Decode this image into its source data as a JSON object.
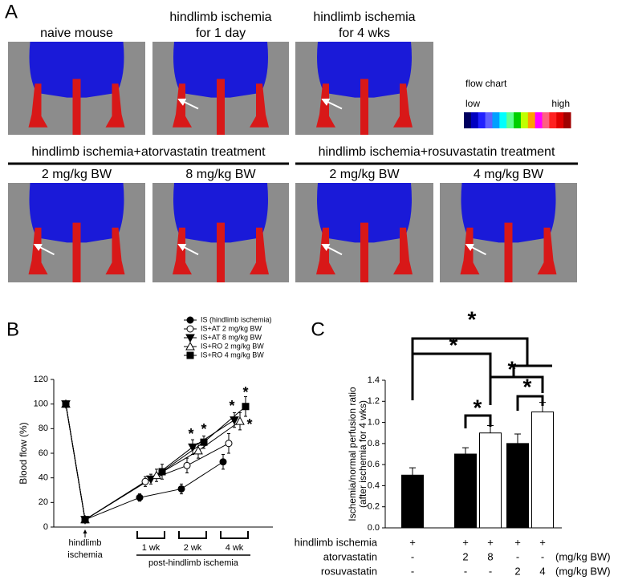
{
  "panel_a": {
    "label": "A",
    "images": [
      {
        "title": [
          "naive mouse"
        ]
      },
      {
        "title": [
          "hindlimb ischemia",
          "for 1 day"
        ]
      },
      {
        "title": [
          "hindlimb ischemia",
          "for 4 wks"
        ]
      }
    ],
    "legend": {
      "title": "flow chart",
      "low": "low",
      "high": "high"
    },
    "groups": [
      {
        "title": "hindlimb ischemia+atorvastatin treatment",
        "doses": [
          "2 mg/kg BW",
          "8 mg/kg BW"
        ]
      },
      {
        "title": "hindlimb ischemia+rosuvastatin treatment",
        "doses": [
          "2 mg/kg BW",
          "4 mg/kg BW"
        ]
      }
    ]
  },
  "chart_data": [
    {
      "type": "line",
      "label": "B",
      "ylabel": "Blood flow (%)",
      "xlabel": "post-hindlimb ischemia",
      "categories": [
        null,
        "hindlimb ischemia",
        "1 wk",
        "2 wk",
        "4 wk"
      ],
      "ylim": [
        0,
        120
      ],
      "yticks": [
        0,
        20,
        40,
        60,
        80,
        100,
        120
      ],
      "series": [
        {
          "name": "IS (hindlimb ischemia)",
          "color": "#000000",
          "marker": "circle",
          "values": [
            100,
            6,
            24,
            31,
            53
          ],
          "errors": [
            null,
            2,
            3,
            4,
            6
          ]
        },
        {
          "name": "IS+AT 2 mg/kg BW",
          "color": "#ffffff",
          "marker": "circle",
          "values": [
            100,
            6,
            37,
            50,
            68
          ],
          "errors": [
            null,
            2,
            4,
            6,
            8
          ]
        },
        {
          "name": "IS+AT 8 mg/kg BW",
          "color": "#000000",
          "marker": "triangle-down",
          "values": [
            100,
            6,
            39,
            65,
            87
          ],
          "errors": [
            null,
            2,
            4,
            6,
            6
          ]
        },
        {
          "name": "IS+RO 2 mg/kg BW",
          "color": "#ffffff",
          "marker": "triangle-up",
          "values": [
            100,
            6,
            42,
            62,
            86
          ],
          "errors": [
            null,
            2,
            5,
            6,
            7
          ]
        },
        {
          "name": "IS+RO 4 mg/kg BW",
          "color": "#000000",
          "marker": "square",
          "values": [
            100,
            6,
            45,
            69,
            98
          ],
          "errors": [
            null,
            2,
            6,
            5,
            8
          ]
        }
      ],
      "annotations": [
        "*",
        "*",
        "*",
        "*",
        "*"
      ]
    },
    {
      "type": "bar",
      "label": "C",
      "ylabel": [
        "Ischemia/normal perfusion ratio",
        "(after ischemia for 4 wks)"
      ],
      "values": [
        0.5,
        0.7,
        0.9,
        0.8,
        1.1
      ],
      "errors": [
        0.07,
        0.06,
        0.07,
        0.09,
        0.09
      ],
      "colors": [
        "#000000",
        "#000000",
        "#ffffff",
        "#000000",
        "#ffffff"
      ],
      "ylim": [
        0,
        1.4
      ],
      "yticks": [
        {
          "value": 0,
          "label": "0.0"
        },
        0.2,
        0.4,
        0.6,
        0.8,
        {
          "value": 1,
          "label": "1.0"
        },
        1.2,
        1.4
      ],
      "table": [
        {
          "name": "hindlimb ischemia",
          "cells": [
            "+",
            "+",
            "+",
            "+",
            "+"
          ]
        },
        {
          "name": "atorvastatin",
          "cells": [
            "-",
            "2",
            "8",
            "-",
            "-"
          ],
          "unit": "(mg/kg BW)"
        },
        {
          "name": "rosuvastatin",
          "cells": [
            "-",
            "-",
            "-",
            "2",
            "4"
          ],
          "unit": "(mg/kg BW)"
        }
      ],
      "annotations": [
        "*",
        "*",
        "*",
        "*",
        "*"
      ]
    }
  ]
}
